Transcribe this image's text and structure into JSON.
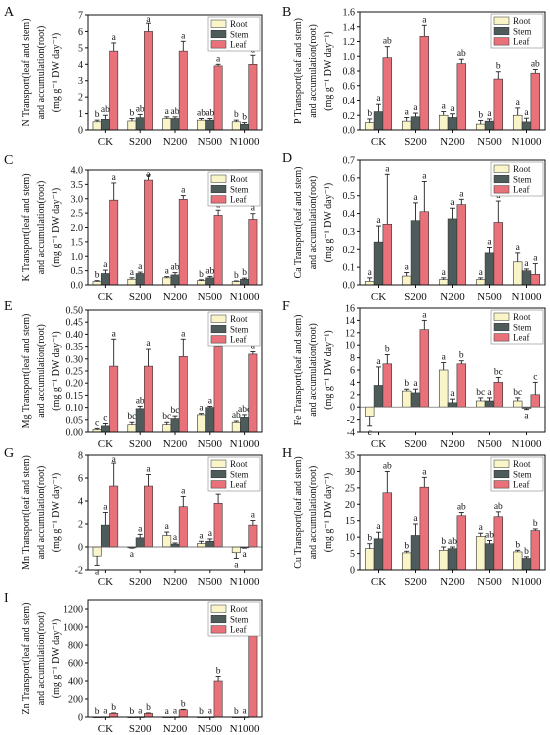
{
  "colors": {
    "Root": "#f9f5c8",
    "Stem": "#4d5b5a",
    "Leaf": "#e9727a",
    "axis": "#111111"
  },
  "legend_labels": [
    "Root",
    "Stem",
    "Leaf"
  ],
  "chart_data": [
    {
      "panel": "A",
      "type": "bar",
      "ylabel_lines": [
        "N Transport(leaf and stem)",
        "and accumulation(root)",
        "(mg g⁻¹ DW day⁻¹)"
      ],
      "categories": [
        "CK",
        "S200",
        "N200",
        "N500",
        "N1000"
      ],
      "ylim": [
        0,
        7
      ],
      "yticks": [
        0,
        1,
        2,
        3,
        4,
        5,
        6,
        7
      ],
      "legend": "top-right",
      "grid": false,
      "series": [
        {
          "name": "Root",
          "values": [
            0.5,
            0.55,
            0.7,
            0.6,
            0.5
          ],
          "errors": [
            0.1,
            0.15,
            0.1,
            0.1,
            0.1
          ],
          "letters": [
            "b",
            "b",
            "a",
            "ab",
            "b"
          ]
        },
        {
          "name": "Stem",
          "values": [
            0.65,
            0.75,
            0.7,
            0.6,
            0.35
          ],
          "errors": [
            0.25,
            0.2,
            0.1,
            0.1,
            0.1
          ],
          "letters": [
            "ab",
            "ab",
            "ab",
            "ab",
            "b"
          ]
        },
        {
          "name": "Leaf",
          "values": [
            4.8,
            6.0,
            4.8,
            3.9,
            4.0
          ],
          "errors": [
            0.5,
            0.5,
            0.6,
            0.1,
            0.55
          ],
          "letters": [
            "a",
            "a",
            "a",
            "a",
            "a"
          ]
        }
      ]
    },
    {
      "panel": "B",
      "type": "bar",
      "ylabel_lines": [
        "P Transport(leaf and stem)",
        "and accumulation(root)",
        "(mg g⁻¹ DW day⁻¹)"
      ],
      "categories": [
        "CK",
        "S200",
        "N200",
        "N500",
        "N1000"
      ],
      "ylim": [
        0,
        1.6
      ],
      "yticks": [
        0.0,
        0.2,
        0.4,
        0.6,
        0.8,
        1.0,
        1.2,
        1.4,
        1.6
      ],
      "legend": "top-right",
      "grid": false,
      "series": [
        {
          "name": "Root",
          "values": [
            0.1,
            0.12,
            0.2,
            0.08,
            0.2
          ],
          "errors": [
            0.05,
            0.05,
            0.05,
            0.05,
            0.1
          ],
          "letters": [
            "b",
            "a",
            "a",
            "b",
            "a"
          ]
        },
        {
          "name": "Stem",
          "values": [
            0.25,
            0.18,
            0.17,
            0.12,
            0.11
          ],
          "errors": [
            0.1,
            0.05,
            0.05,
            0.03,
            0.05
          ],
          "letters": [
            "a",
            "a",
            "a",
            "a",
            "a"
          ]
        },
        {
          "name": "Leaf",
          "values": [
            0.98,
            1.27,
            0.9,
            0.69,
            0.77
          ],
          "errors": [
            0.15,
            0.15,
            0.06,
            0.1,
            0.05
          ],
          "letters": [
            "ab",
            "a",
            "ab",
            "b",
            "ab"
          ]
        }
      ]
    },
    {
      "panel": "C",
      "type": "bar",
      "ylabel_lines": [
        "K Transport(leaf and stem)",
        "and accumulation(root)",
        "(mg g⁻¹ DW day⁻¹)"
      ],
      "categories": [
        "CK",
        "S200",
        "N200",
        "N500",
        "N1000"
      ],
      "ylim": [
        0,
        4.0
      ],
      "yticks": [
        0.0,
        0.5,
        1.0,
        1.5,
        2.0,
        2.5,
        3.0,
        3.5,
        4.0
      ],
      "legend": "top-right",
      "grid": false,
      "series": [
        {
          "name": "Root",
          "values": [
            0.12,
            0.2,
            0.25,
            0.15,
            0.12
          ],
          "errors": [
            0.03,
            0.05,
            0.04,
            0.03,
            0.02
          ],
          "letters": [
            "b",
            "a",
            "a",
            "b",
            "b"
          ]
        },
        {
          "name": "Stem",
          "values": [
            0.4,
            0.4,
            0.35,
            0.25,
            0.2
          ],
          "errors": [
            0.12,
            0.05,
            0.08,
            0.05,
            0.04
          ],
          "letters": [
            "a",
            "a",
            "ab",
            "ab",
            "b"
          ]
        },
        {
          "name": "Leaf",
          "values": [
            2.95,
            3.65,
            2.98,
            2.42,
            2.28
          ],
          "errors": [
            0.6,
            0.18,
            0.13,
            0.18,
            0.2
          ],
          "letters": [
            "a",
            "a",
            "a",
            "a",
            "a"
          ]
        }
      ]
    },
    {
      "panel": "D",
      "type": "bar",
      "ylabel_lines": [
        "Ca Transport(leaf and stem)",
        "and accumulation(root)",
        "(mg g⁻¹ DW day⁻¹)"
      ],
      "categories": [
        "CK",
        "S200",
        "N200",
        "N500",
        "N1000"
      ],
      "ylim": [
        0,
        0.7
      ],
      "yticks": [
        0.0,
        0.1,
        0.2,
        0.3,
        0.4,
        0.5,
        0.6,
        0.7
      ],
      "legend": "top-right",
      "grid": false,
      "series": [
        {
          "name": "Root",
          "values": [
            0.02,
            0.05,
            0.03,
            0.03,
            0.13
          ],
          "errors": [
            0.02,
            0.02,
            0.01,
            0.01,
            0.05
          ],
          "letters": [
            "a",
            "a",
            "a",
            "a",
            "a"
          ]
        },
        {
          "name": "Stem",
          "values": [
            0.24,
            0.36,
            0.37,
            0.18,
            0.08
          ],
          "errors": [
            0.09,
            0.1,
            0.06,
            0.03,
            0.01
          ],
          "letters": [
            "a",
            "a",
            "a",
            "a",
            "a"
          ]
        },
        {
          "name": "Leaf",
          "values": [
            0.34,
            0.41,
            0.45,
            0.35,
            0.06
          ],
          "errors": [
            0.28,
            0.17,
            0.03,
            0.12,
            0.06
          ],
          "letters": [
            "a",
            "a",
            "a",
            "a",
            "a"
          ]
        }
      ]
    },
    {
      "panel": "E",
      "type": "bar",
      "ylabel_lines": [
        "Mg Transport(leaf and stem)",
        "and accumulation(root)",
        "(mg g⁻¹ DW day⁻¹)"
      ],
      "categories": [
        "CK",
        "S200",
        "N200",
        "N500",
        "N1000"
      ],
      "ylim": [
        0,
        0.5
      ],
      "yticks": [
        0.0,
        0.05,
        0.1,
        0.15,
        0.2,
        0.25,
        0.3,
        0.35,
        0.4,
        0.45,
        0.5
      ],
      "legend": "top-right",
      "grid": false,
      "series": [
        {
          "name": "Root",
          "values": [
            0.01,
            0.03,
            0.03,
            0.07,
            0.04
          ],
          "errors": [
            0.005,
            0.01,
            0.01,
            0.005,
            0.005
          ],
          "letters": [
            "c",
            "bc",
            "bc",
            "a",
            "ab"
          ]
        },
        {
          "name": "Stem",
          "values": [
            0.025,
            0.095,
            0.055,
            0.1,
            0.06
          ],
          "errors": [
            0.01,
            0.01,
            0.01,
            0.005,
            0.01
          ],
          "letters": [
            "c",
            "ab",
            "bc",
            "a",
            "abc"
          ]
        },
        {
          "name": "Leaf",
          "values": [
            0.27,
            0.27,
            0.31,
            0.35,
            0.32
          ],
          "errors": [
            0.11,
            0.07,
            0.07,
            0.01,
            0.01
          ],
          "letters": [
            "a",
            "a",
            "a",
            "a",
            "a"
          ]
        }
      ]
    },
    {
      "panel": "F",
      "type": "bar",
      "ylabel_lines": [
        "Fe Transport(leaf and stem)",
        "and accumulation(root)",
        "(mg g⁻¹ DW day⁻¹)"
      ],
      "categories": [
        "CK",
        "S200",
        "N200",
        "N500",
        "N1000"
      ],
      "ylim": [
        -4,
        16
      ],
      "yticks": [
        -4,
        -2,
        0,
        2,
        4,
        6,
        8,
        10,
        12,
        14,
        16
      ],
      "legend": "top-right",
      "grid": false,
      "series": [
        {
          "name": "Root",
          "values": [
            -1.5,
            2.6,
            6.0,
            1.0,
            1.0
          ],
          "errors": [
            1.5,
            0.3,
            1.2,
            0.5,
            0.5
          ],
          "letters": [
            "c",
            "b",
            "a",
            "bc",
            "bc"
          ]
        },
        {
          "name": "Stem",
          "values": [
            3.5,
            2.3,
            0.7,
            1.0,
            -0.2
          ],
          "errors": [
            3.0,
            0.6,
            0.6,
            0.5,
            0.2
          ],
          "letters": [
            "a",
            "a",
            "a",
            "a",
            "a"
          ]
        },
        {
          "name": "Leaf",
          "values": [
            7.0,
            12.5,
            7.0,
            4.0,
            2.0
          ],
          "errors": [
            1.5,
            1.5,
            0.5,
            0.8,
            2.0
          ],
          "letters": [
            "b",
            "a",
            "b",
            "bc",
            "c"
          ]
        }
      ]
    },
    {
      "panel": "G",
      "type": "bar",
      "ylabel_lines": [
        "Mn Transport(leaf and stem)",
        "and accumulation(root)",
        "(mg g⁻¹ DW day⁻¹)"
      ],
      "categories": [
        "CK",
        "S200",
        "N200",
        "N500",
        "N1000"
      ],
      "ylim": [
        -2,
        8
      ],
      "yticks": [
        -2,
        0,
        2,
        4,
        6,
        8
      ],
      "legend": "top-right",
      "grid": false,
      "series": [
        {
          "name": "Root",
          "values": [
            -0.8,
            -0.05,
            1.0,
            0.3,
            -0.5
          ],
          "errors": [
            0.8,
            0.05,
            0.3,
            0.2,
            0.5
          ],
          "letters": [
            "a",
            "a",
            "a",
            "a",
            "a"
          ]
        },
        {
          "name": "Stem",
          "values": [
            1.9,
            0.8,
            0.25,
            0.5,
            -0.05
          ],
          "errors": [
            1.1,
            0.3,
            0.1,
            0.2,
            0.05
          ],
          "letters": [
            "a",
            "a",
            "a",
            "a",
            "a"
          ]
        },
        {
          "name": "Leaf",
          "values": [
            5.3,
            5.3,
            3.5,
            3.8,
            1.9
          ],
          "errors": [
            2.0,
            1.0,
            0.9,
            0.8,
            0.4
          ],
          "letters": [
            "a",
            "a",
            "a",
            "a",
            "a"
          ]
        }
      ]
    },
    {
      "panel": "H",
      "type": "bar",
      "ylabel_lines": [
        "Cu Transport(leaf and stem)",
        "and accumulation(root)",
        "(mg g⁻¹ DW day⁻¹)"
      ],
      "categories": [
        "CK",
        "S200",
        "N200",
        "N500",
        "N1000"
      ],
      "ylim": [
        0,
        35
      ],
      "yticks": [
        0,
        5,
        10,
        15,
        20,
        25,
        30,
        35
      ],
      "legend": "top-right",
      "grid": false,
      "series": [
        {
          "name": "Root",
          "values": [
            6.5,
            5.2,
            6.0,
            10.2,
            5.5
          ],
          "errors": [
            1.5,
            0.5,
            1.0,
            1.0,
            0.5
          ],
          "letters": [
            "b",
            "b",
            "b",
            "a",
            "b"
          ]
        },
        {
          "name": "Stem",
          "values": [
            9.5,
            10.5,
            6.5,
            8.0,
            3.5
          ],
          "errors": [
            2.0,
            3.5,
            0.5,
            1.0,
            0.5
          ],
          "letters": [
            "a",
            "a",
            "ab",
            "ab",
            "b"
          ]
        },
        {
          "name": "Leaf",
          "values": [
            23.5,
            25.2,
            16.5,
            16.2,
            12.0
          ],
          "errors": [
            6.5,
            3.0,
            1.0,
            1.5,
            0.5
          ],
          "letters": [
            "ab",
            "a",
            "ab",
            "ab",
            "b"
          ]
        }
      ]
    },
    {
      "panel": "I",
      "type": "bar",
      "ylabel_lines": [
        "Zn Transport(leaf and stem)",
        "and accumulation(root)",
        "(mg g⁻¹ DW day⁻¹)"
      ],
      "categories": [
        "CK",
        "S200",
        "N200",
        "N500",
        "N1000"
      ],
      "ylim": [
        0,
        1300
      ],
      "yticks": [
        0,
        200,
        400,
        600,
        800,
        1000,
        1200
      ],
      "legend": "top-right",
      "grid": false,
      "series": [
        {
          "name": "Root",
          "values": [
            2,
            2,
            2,
            2,
            2
          ],
          "errors": [
            0,
            0,
            0,
            0,
            0
          ],
          "letters": [
            "b",
            "b",
            "a",
            "b",
            "b"
          ]
        },
        {
          "name": "Stem",
          "values": [
            3,
            3,
            3,
            3,
            3
          ],
          "errors": [
            0,
            0,
            0,
            0,
            0
          ],
          "letters": [
            "a",
            "a",
            "a",
            "a",
            "a"
          ]
        },
        {
          "name": "Leaf",
          "values": [
            40,
            40,
            80,
            400,
            900
          ],
          "errors": [
            5,
            5,
            5,
            50,
            350
          ],
          "letters": [
            "b",
            "b",
            "b",
            "b",
            "a"
          ]
        }
      ]
    }
  ]
}
